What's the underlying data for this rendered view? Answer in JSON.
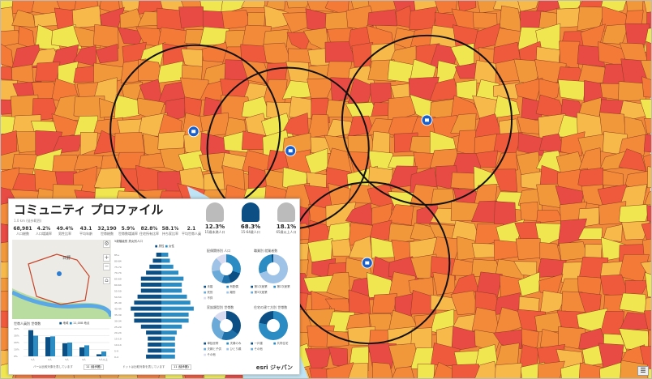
{
  "map": {
    "pins": 4,
    "rings": 4
  },
  "profile": {
    "title": "コミュニティ プロファイル",
    "subtitle": "1.0 km (徒歩範囲)",
    "stats": [
      {
        "value": "68,981",
        "label": "人口総数"
      },
      {
        "value": "4.2%",
        "label": "人口増減率"
      },
      {
        "value": "49.4%",
        "label": "男性比率"
      },
      {
        "value": "43.1",
        "label": "平均年齢"
      },
      {
        "value": "32,190",
        "label": "世帯総数"
      },
      {
        "value": "5.9%",
        "label": "世帯数増減率"
      },
      {
        "value": "82.8%",
        "label": "住宅所有比率"
      },
      {
        "value": "58.1%",
        "label": "持ち家比率"
      },
      {
        "value": "2.1",
        "label": "平均世帯人員"
      }
    ],
    "age_groups": [
      {
        "value": "12.3%",
        "label": "15歳未満人口"
      },
      {
        "value": "68.3%",
        "label": "15-64歳人口"
      },
      {
        "value": "18.1%",
        "label": "65歳以上人口"
      }
    ],
    "donuts": [
      {
        "title": "配偶関係別 人口",
        "legend": [
          "未婚",
          "有配偶",
          "死別",
          "離別",
          "不詳"
        ]
      },
      {
        "title": "職業別 就業者数",
        "legend": [
          "第1次産業",
          "第2次産業",
          "第3次産業"
        ]
      },
      {
        "title": "家族類型別 世帯数",
        "legend": [
          "単独世帯",
          "夫婦のみ",
          "夫婦と子供",
          "ひとり親",
          "その他"
        ]
      },
      {
        "title": "住宅の建て方別 世帯数",
        "legend": [
          "一戸建",
          "共同住宅",
          "その他"
        ]
      }
    ],
    "map_label": "日野",
    "pyramid_title": "5歳階級別 男女別人口",
    "pyramid_legend": [
      "男性",
      "女性"
    ],
    "bar_title": "世帯人員別 世帯数",
    "bar_legend": [
      "地域",
      "11,008 地点"
    ],
    "bar_note": "バーは比較対象を表しています",
    "pyr_note": "ドットは比較対象を表しています",
    "select": "11 (徒歩圏)",
    "brand": "esri ジャパン"
  },
  "chart_data": [
    {
      "type": "bar",
      "title": "世帯人員別 世帯数",
      "categories": [
        "1人",
        "2人",
        "3人",
        "4人",
        "5人以上"
      ],
      "series": [
        {
          "name": "地域",
          "values": [
            38,
            28,
            19,
            13,
            3
          ]
        },
        {
          "name": "比較",
          "values": [
            30,
            29,
            20,
            16,
            7
          ]
        }
      ],
      "ylim": [
        0,
        40
      ],
      "yticks": [
        "0%",
        "10%",
        "20%",
        "30%",
        "40%"
      ]
    },
    {
      "type": "bar",
      "title": "5歳階級別 男女別人口",
      "categories": [
        "85+",
        "80-84",
        "75-79",
        "70-74",
        "65-69",
        "60-64",
        "55-59",
        "50-54",
        "45-49",
        "40-44",
        "35-39",
        "30-34",
        "25-29",
        "20-24",
        "15-19",
        "10-14",
        "5-9",
        "0-4"
      ],
      "series": [
        {
          "name": "男性",
          "values": [
            1.5,
            2.5,
            3.5,
            4.5,
            6,
            6,
            6,
            7,
            8,
            9,
            8,
            8,
            6,
            4.5,
            4,
            4,
            4,
            4.5
          ]
        },
        {
          "name": "女性",
          "values": [
            2,
            2.5,
            3.5,
            5,
            6.5,
            6,
            6,
            7.5,
            8.5,
            9.5,
            8,
            8,
            6,
            4.5,
            4,
            4,
            4,
            4
          ]
        }
      ],
      "xlim": [
        -10,
        10
      ]
    }
  ]
}
